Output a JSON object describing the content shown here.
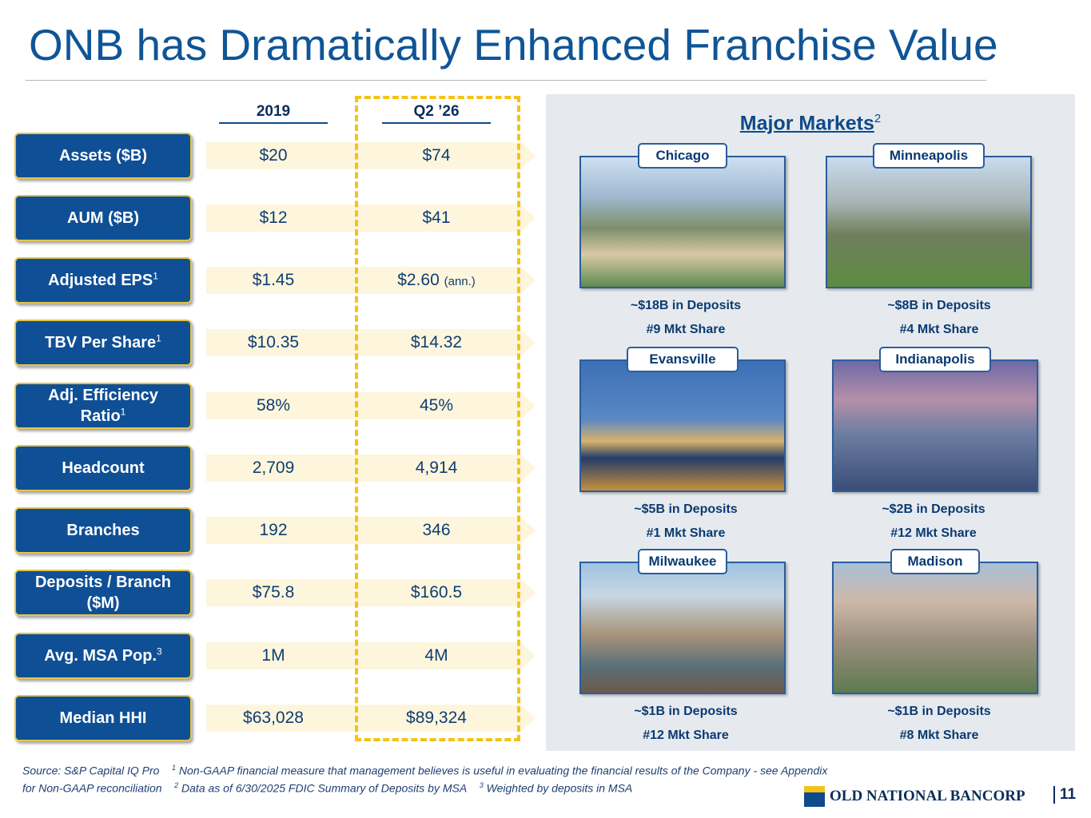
{
  "title": "ONB has Dramatically Enhanced Franchise Value",
  "table": {
    "columns": [
      "2019",
      "Q2 ’26"
    ],
    "rows": [
      {
        "label": "Assets ($B)",
        "values": [
          "$20",
          "$74"
        ]
      },
      {
        "label": "AUM ($B)",
        "values": [
          "$12",
          "$41"
        ]
      },
      {
        "label": "Adjusted EPS",
        "note": "1",
        "values": [
          "$1.45",
          "$2.60"
        ],
        "value_note": "(ann.)"
      },
      {
        "label": "TBV Per Share",
        "note": "1",
        "values": [
          "$10.35",
          "$14.32"
        ]
      },
      {
        "label": "Adj. Efficiency Ratio",
        "note": "1",
        "values": [
          "58%",
          "45%"
        ]
      },
      {
        "label": "Headcount",
        "values": [
          "2,709",
          "4,914"
        ]
      },
      {
        "label": "Branches",
        "values": [
          "192",
          "346"
        ]
      },
      {
        "label": "Deposits / Branch ($M)",
        "values": [
          "$75.8",
          "$160.5"
        ]
      },
      {
        "label": "Avg. MSA Pop.",
        "note": "3",
        "values": [
          "1M",
          "4M"
        ]
      },
      {
        "label": "Median HHI",
        "values": [
          "$63,028",
          "$89,324"
        ]
      }
    ]
  },
  "markets": {
    "title": "Major Markets",
    "note": "2",
    "cities": [
      {
        "name": "Chicago",
        "deposits": "~$18B in Deposits",
        "share": "#9 Mkt Share"
      },
      {
        "name": "Minneapolis",
        "deposits": "~$8B in Deposits",
        "share": "#4 Mkt Share"
      },
      {
        "name": "Evansville",
        "deposits": "~$5B in Deposits",
        "share": "#1 Mkt Share"
      },
      {
        "name": "Indianapolis",
        "deposits": "~$2B in Deposits",
        "share": "#12 Mkt Share"
      },
      {
        "name": "Milwaukee",
        "deposits": "~$1B in Deposits",
        "share": "#12 Mkt Share"
      },
      {
        "name": "Madison",
        "deposits": "~$1B in Deposits",
        "share": "#8 Mkt Share"
      }
    ]
  },
  "footnotes": {
    "source": "Source: S&P Capital IQ Pro",
    "items": [
      {
        "mark": "1",
        "text": "Non-GAAP financial measure that management believes is useful in evaluating the financial results of the Company - see Appendix for Non-GAAP reconciliation"
      },
      {
        "mark": "2",
        "text": "Data as of 6/30/2025 FDIC Summary of Deposits by MSA"
      },
      {
        "mark": "3",
        "text": "Weighted by deposits in MSA"
      }
    ]
  },
  "footer": {
    "logo": "OLD NATIONAL BANCORP",
    "page": "11"
  }
}
